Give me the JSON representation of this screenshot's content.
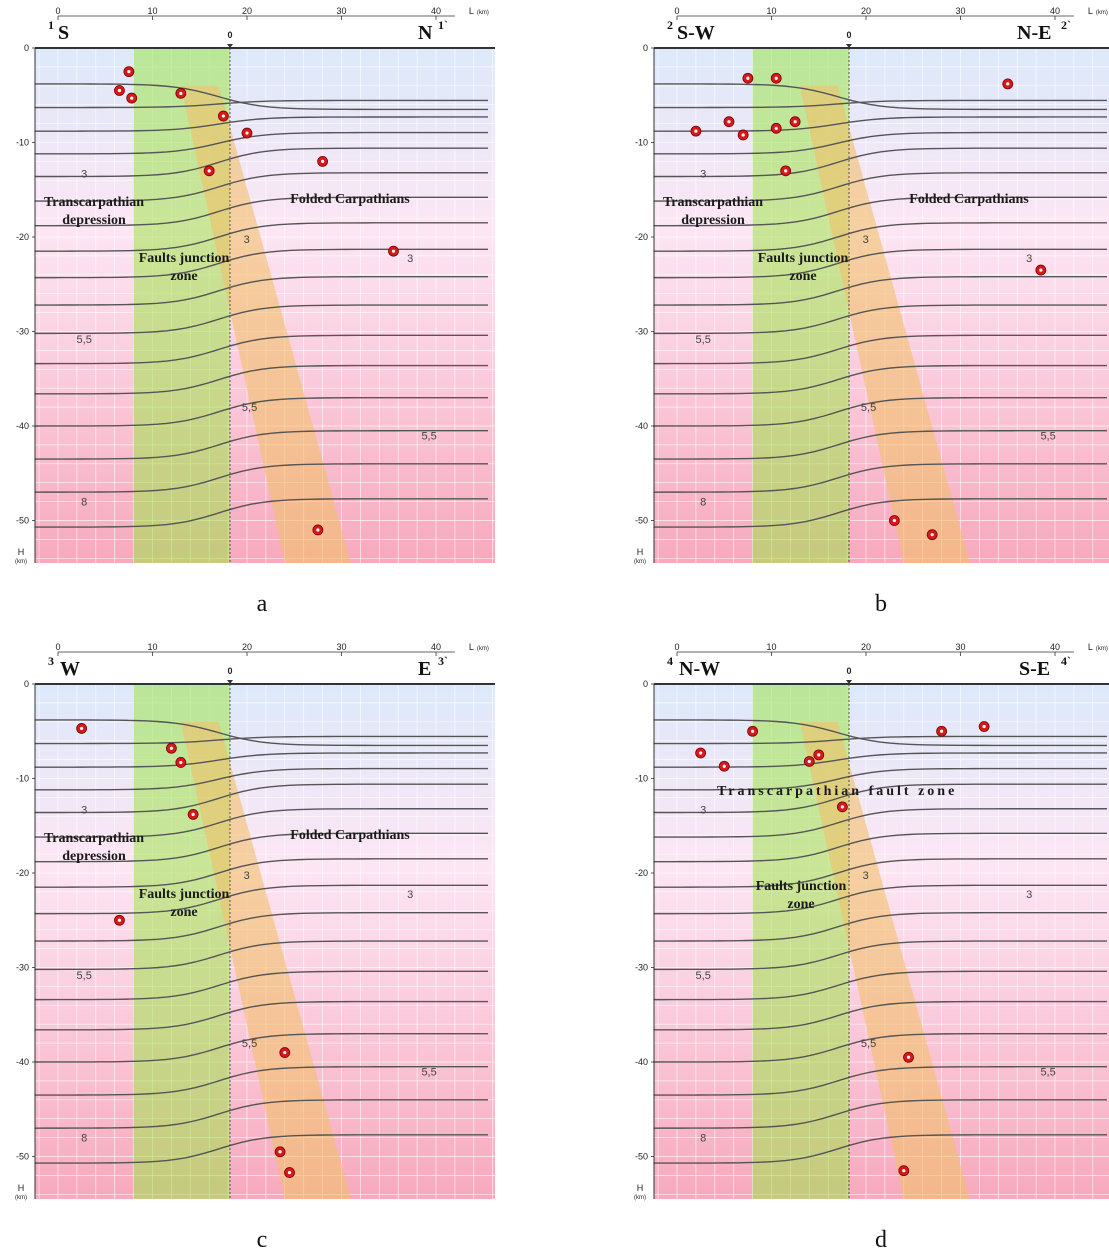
{
  "axis": {
    "top_ticks": [
      "0",
      "10",
      "20",
      "30",
      "40"
    ],
    "top_unit": "L",
    "top_unit_sub": "(km)",
    "origin_mark": "0",
    "left_ticks": [
      "0",
      "-10",
      "-20",
      "-30",
      "-40",
      "-50"
    ],
    "left_unit": "H",
    "left_unit_sub": "(km)"
  },
  "colors": {
    "sky_top": "#dce9fb",
    "mid": "#fde6f4",
    "bottom": "#f7a9bd",
    "green_band": "#9fe34a",
    "orange_band": "#f2c06b",
    "contour": "#555555",
    "quake": "#d7191c"
  },
  "panels": [
    {
      "caption": "a",
      "left_num": "1",
      "right_num": "1`",
      "left_dir": "S",
      "right_dir": "N",
      "labels": [
        {
          "name": "transcarpathian-depression-label",
          "lines": [
            "Transcarpathian",
            "depression"
          ]
        },
        {
          "name": "folded-carpathians-label",
          "lines": [
            "Folded Carpathians"
          ]
        },
        {
          "name": "faults-junction-label",
          "lines": [
            "Faults junction",
            "zone"
          ]
        }
      ],
      "iso_labels": [
        "3",
        "3",
        "3",
        "5,5",
        "5,5",
        "5,5",
        "8"
      ],
      "quakes": [
        [
          7.5,
          -2.5
        ],
        [
          6.5,
          -4.5
        ],
        [
          7.8,
          -5.3
        ],
        [
          13,
          -4.8
        ],
        [
          17.5,
          -7.2
        ],
        [
          20,
          -9
        ],
        [
          16,
          -13
        ],
        [
          28,
          -12
        ],
        [
          35.5,
          -21.5
        ],
        [
          27.5,
          -51
        ]
      ]
    },
    {
      "caption": "b",
      "left_num": "2",
      "right_num": "2`",
      "left_dir": "S-W",
      "right_dir": "N-E",
      "labels": [
        {
          "name": "transcarpathian-depression-label",
          "lines": [
            "Transcarpathian",
            "depression"
          ]
        },
        {
          "name": "folded-carpathians-label",
          "lines": [
            "Folded Carpathians"
          ]
        },
        {
          "name": "faults-junction-label",
          "lines": [
            "Faults junction",
            "zone"
          ]
        }
      ],
      "iso_labels": [
        "3",
        "3",
        "3",
        "5,5",
        "5,5",
        "5,5",
        "8"
      ],
      "quakes": [
        [
          7.5,
          -3.2
        ],
        [
          10.5,
          -3.2
        ],
        [
          5.5,
          -7.8
        ],
        [
          7,
          -9.2
        ],
        [
          2,
          -8.8
        ],
        [
          10.5,
          -8.5
        ],
        [
          12.5,
          -7.8
        ],
        [
          11.5,
          -13
        ],
        [
          35,
          -3.8
        ],
        [
          38.5,
          -23.5
        ],
        [
          23,
          -50
        ],
        [
          27,
          -51.5
        ]
      ]
    },
    {
      "caption": "c",
      "left_num": "3",
      "right_num": "3`",
      "left_dir": "W",
      "right_dir": "E",
      "labels": [
        {
          "name": "transcarpathian-depression-label",
          "lines": [
            "Transcarpathian",
            "depression"
          ]
        },
        {
          "name": "folded-carpathians-label",
          "lines": [
            "Folded Carpathians"
          ]
        },
        {
          "name": "faults-junction-label",
          "lines": [
            "Faults junction",
            "zone"
          ]
        }
      ],
      "iso_labels": [
        "3",
        "3",
        "3",
        "5,5",
        "5,5",
        "5,5",
        "8"
      ],
      "quakes": [
        [
          2.5,
          -4.7
        ],
        [
          12,
          -6.8
        ],
        [
          13,
          -8.3
        ],
        [
          14.3,
          -13.8
        ],
        [
          6.5,
          -25
        ],
        [
          24,
          -39
        ],
        [
          23.5,
          -49.5
        ],
        [
          24.5,
          -51.7
        ]
      ]
    },
    {
      "caption": "d",
      "left_num": "4",
      "right_num": "4`",
      "left_dir": "N-W",
      "right_dir": "S-E",
      "labels": [
        {
          "name": "transcarpathian-fault-zone-label",
          "lines": [
            "Transcarpathian fault zone"
          ]
        },
        {
          "name": "faults-junction-label",
          "lines": [
            "Faults junction",
            "zone"
          ]
        }
      ],
      "iso_labels": [
        "3",
        "3",
        "3",
        "5,5",
        "5,5",
        "5,5",
        "8"
      ],
      "quakes": [
        [
          2.5,
          -7.3
        ],
        [
          5,
          -8.7
        ],
        [
          8,
          -5
        ],
        [
          14,
          -8.2
        ],
        [
          15,
          -7.5
        ],
        [
          17.5,
          -13
        ],
        [
          28,
          -5
        ],
        [
          32.5,
          -4.5
        ],
        [
          24.5,
          -39.5
        ],
        [
          24,
          -51.5
        ]
      ]
    }
  ]
}
